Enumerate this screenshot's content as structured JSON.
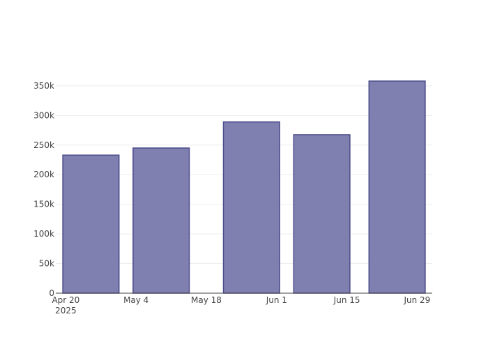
{
  "chart_data": {
    "type": "bar",
    "x": [
      "2025-04-25",
      "2025-05-09",
      "2025-05-27",
      "2025-06-10",
      "2025-06-25"
    ],
    "values": [
      233000,
      245000,
      289000,
      267500,
      358000
    ],
    "color": "#7f7fb0",
    "edge_color": "#4b4b8a",
    "bar_width_days": 11.2,
    "xlim": [
      "2025-04-18",
      "2025-07-02"
    ],
    "xticks": [
      {
        "value": "2025-04-20",
        "label": "Apr 20\n2025"
      },
      {
        "value": "2025-05-04",
        "label": "May 4"
      },
      {
        "value": "2025-05-18",
        "label": "May 18"
      },
      {
        "value": "2025-06-01",
        "label": "Jun 1"
      },
      {
        "value": "2025-06-15",
        "label": "Jun 15"
      },
      {
        "value": "2025-06-29",
        "label": "Jun 29"
      }
    ],
    "ylim": [
      0,
      377000
    ],
    "yticks": [
      0,
      {
        "value": 50000,
        "label": "50k"
      },
      {
        "value": 100000,
        "label": "100k"
      },
      {
        "value": 150000,
        "label": "150k"
      },
      {
        "value": 200000,
        "label": "200k"
      },
      {
        "value": 250000,
        "label": "250k"
      },
      {
        "value": 300000,
        "label": "300k"
      },
      {
        "value": 350000,
        "label": "350k"
      }
    ],
    "grid": true
  }
}
